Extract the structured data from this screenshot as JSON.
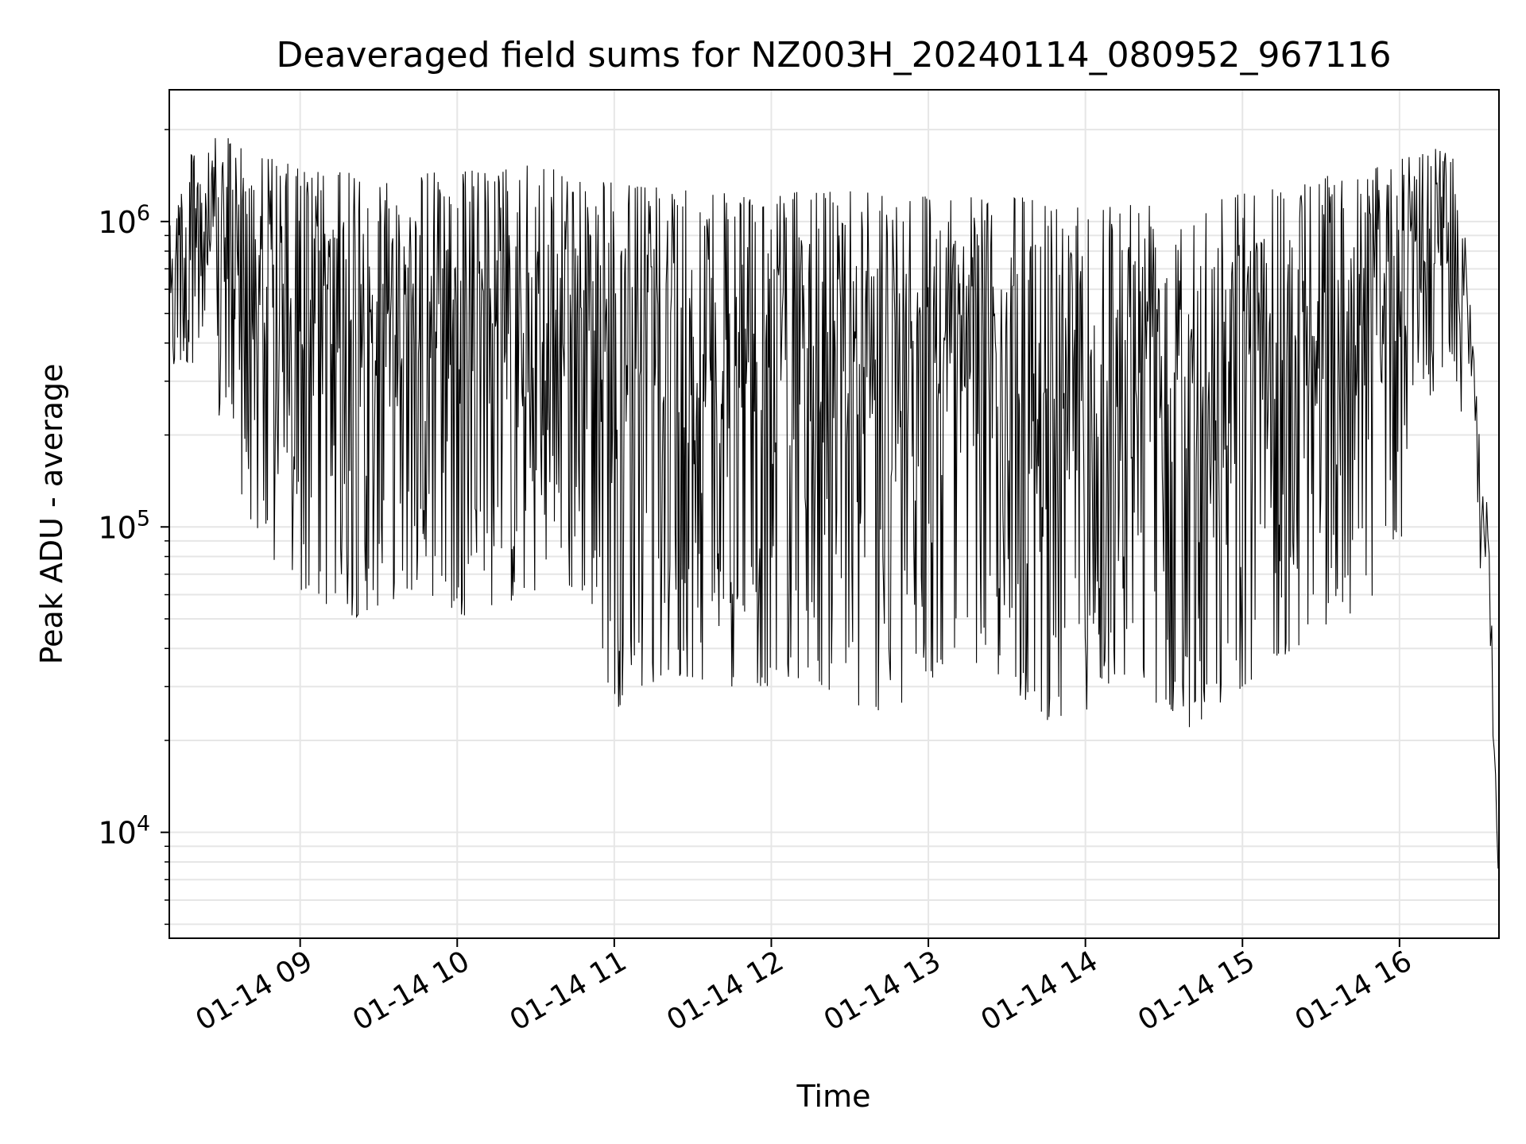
{
  "chart_data": {
    "type": "line",
    "title": "Deaveraged field sums for NZ003H_20240114_080952_967116",
    "xlabel": "Time",
    "ylabel": "Peak ADU - average",
    "yscale": "log",
    "xlim": [
      "2024-01-14T08:10",
      "2024-01-14T16:38"
    ],
    "ylim": [
      4500,
      2700000
    ],
    "grid": true,
    "x_ticks": [
      {
        "value": "2024-01-14T09:00",
        "label": "01-14 09"
      },
      {
        "value": "2024-01-14T10:00",
        "label": "01-14 10"
      },
      {
        "value": "2024-01-14T11:00",
        "label": "01-14 11"
      },
      {
        "value": "2024-01-14T12:00",
        "label": "01-14 12"
      },
      {
        "value": "2024-01-14T13:00",
        "label": "01-14 13"
      },
      {
        "value": "2024-01-14T14:00",
        "label": "01-14 14"
      },
      {
        "value": "2024-01-14T15:00",
        "label": "01-14 15"
      },
      {
        "value": "2024-01-14T16:00",
        "label": "01-14 16"
      }
    ],
    "y_ticks": [
      {
        "value": 10000,
        "base": "10",
        "exp": "4"
      },
      {
        "value": 100000,
        "base": "10",
        "exp": "5"
      },
      {
        "value": 1000000,
        "base": "10",
        "exp": "6"
      }
    ],
    "series": [
      {
        "color": "#000000",
        "x": [
          "2024-01-14T08:10",
          "2024-01-14T08:20",
          "2024-01-14T08:30",
          "2024-01-14T08:40",
          "2024-01-14T08:50",
          "2024-01-14T09:00",
          "2024-01-14T09:10",
          "2024-01-14T09:20",
          "2024-01-14T09:30",
          "2024-01-14T09:40",
          "2024-01-14T09:50",
          "2024-01-14T10:00",
          "2024-01-14T10:10",
          "2024-01-14T10:20",
          "2024-01-14T10:30",
          "2024-01-14T10:40",
          "2024-01-14T10:50",
          "2024-01-14T11:00",
          "2024-01-14T11:10",
          "2024-01-14T11:20",
          "2024-01-14T11:30",
          "2024-01-14T11:40",
          "2024-01-14T11:50",
          "2024-01-14T12:00",
          "2024-01-14T12:10",
          "2024-01-14T12:20",
          "2024-01-14T12:30",
          "2024-01-14T12:40",
          "2024-01-14T12:50",
          "2024-01-14T13:00",
          "2024-01-14T13:10",
          "2024-01-14T13:20",
          "2024-01-14T13:30",
          "2024-01-14T13:40",
          "2024-01-14T13:50",
          "2024-01-14T14:00",
          "2024-01-14T14:10",
          "2024-01-14T14:20",
          "2024-01-14T14:30",
          "2024-01-14T14:40",
          "2024-01-14T14:50",
          "2024-01-14T15:00",
          "2024-01-14T15:10",
          "2024-01-14T15:20",
          "2024-01-14T15:30",
          "2024-01-14T15:40",
          "2024-01-14T15:50",
          "2024-01-14T16:00",
          "2024-01-14T16:10",
          "2024-01-14T16:20",
          "2024-01-14T16:25",
          "2024-01-14T16:30",
          "2024-01-14T16:34",
          "2024-01-14T16:38"
        ],
        "upper": [
          1100000,
          1800000,
          1900000,
          1800000,
          1600000,
          1500000,
          1450000,
          1450000,
          1400000,
          1400000,
          1450000,
          1500000,
          1450000,
          1500000,
          1550000,
          1450000,
          1400000,
          1350000,
          1300000,
          1300000,
          1250000,
          1250000,
          1200000,
          1200000,
          1250000,
          1250000,
          1300000,
          1300000,
          1250000,
          1250000,
          1200000,
          1200000,
          1200000,
          1200000,
          1150000,
          1200000,
          1150000,
          1200000,
          1200000,
          1200000,
          1250000,
          1250000,
          1300000,
          1350000,
          1400000,
          1450000,
          1500000,
          1600000,
          1700000,
          1800000,
          900000,
          250000,
          120000,
          6000
        ],
        "lower": [
          300000,
          350000,
          200000,
          110000,
          70000,
          60000,
          55000,
          50000,
          55000,
          60000,
          60000,
          50000,
          55000,
          55000,
          60000,
          60000,
          60000,
          25000,
          30000,
          30000,
          32000,
          30000,
          30000,
          30000,
          32000,
          30000,
          25000,
          25000,
          24000,
          30000,
          40000,
          35000,
          30000,
          25000,
          22000,
          25000,
          30000,
          30000,
          25000,
          22000,
          25000,
          30000,
          35000,
          40000,
          45000,
          50000,
          60000,
          80000,
          250000,
          350000,
          200000,
          80000,
          50000,
          6000
        ]
      }
    ]
  }
}
